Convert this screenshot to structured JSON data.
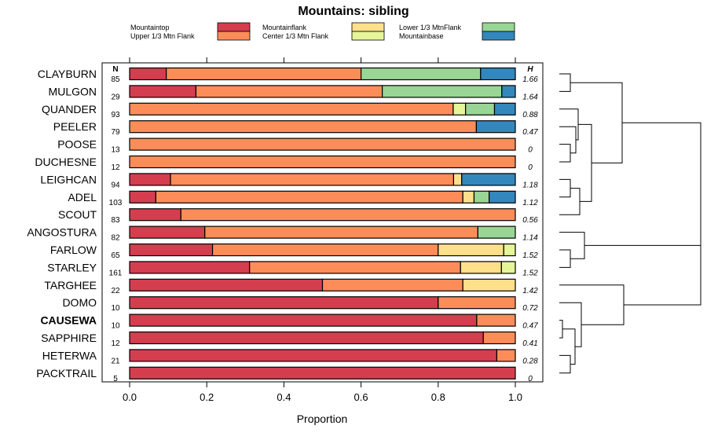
{
  "chart_data": {
    "type": "bar",
    "stacked": true,
    "orientation": "horizontal",
    "title": "Mountains: sibling",
    "xlabel": "Proportion",
    "xlim": [
      0,
      1
    ],
    "xticks": [
      "0.0",
      "0.2",
      "0.4",
      "0.6",
      "0.8",
      "1.0"
    ],
    "n_label": "N",
    "h_label": "H",
    "legend_position": "top",
    "legend": [
      {
        "name": "Mountaintop",
        "color": "#d53e4f"
      },
      {
        "name": "Upper 1/3 Mtn Flank",
        "color": "#fc8d59"
      },
      {
        "name": "Mountainflank",
        "color": "#fee08b"
      },
      {
        "name": "Center 1/3 Mtn Flank",
        "color": "#e6f598"
      },
      {
        "name": "Lower 1/3 MtnFlank",
        "color": "#99d594"
      },
      {
        "name": "Mountainbase",
        "color": "#3288bd"
      }
    ],
    "rows": [
      {
        "label": "CLAYBURN",
        "n": "85",
        "h": "1.66",
        "bold": false,
        "values": [
          0.095,
          0.505,
          0,
          0,
          0.31,
          0.09
        ]
      },
      {
        "label": "MULGON",
        "n": "29",
        "h": "1.64",
        "bold": false,
        "values": [
          0.172,
          0.483,
          0,
          0,
          0.31,
          0.035
        ]
      },
      {
        "label": "QUANDER",
        "n": "93",
        "h": "0.88",
        "bold": false,
        "values": [
          0,
          0.839,
          0,
          0.032,
          0.075,
          0.054
        ]
      },
      {
        "label": "PEELER",
        "n": "79",
        "h": "0.47",
        "bold": false,
        "values": [
          0,
          0.899,
          0,
          0,
          0,
          0.101
        ]
      },
      {
        "label": "POOSE",
        "n": "13",
        "h": "0",
        "bold": false,
        "values": [
          0,
          1,
          0,
          0,
          0,
          0
        ]
      },
      {
        "label": "DUCHESNE",
        "n": "12",
        "h": "0",
        "bold": false,
        "values": [
          0,
          1,
          0,
          0,
          0,
          0
        ]
      },
      {
        "label": "LEIGHCAN",
        "n": "94",
        "h": "1.18",
        "bold": false,
        "values": [
          0.106,
          0.734,
          0.021,
          0,
          0,
          0.139
        ]
      },
      {
        "label": "ADEL",
        "n": "103",
        "h": "1.12",
        "bold": false,
        "values": [
          0.068,
          0.796,
          0.029,
          0,
          0.039,
          0.068
        ]
      },
      {
        "label": "SCOUT",
        "n": "83",
        "h": "0.56",
        "bold": false,
        "values": [
          0.133,
          0.867,
          0,
          0,
          0,
          0
        ]
      },
      {
        "label": "ANGOSTURA",
        "n": "82",
        "h": "1.14",
        "bold": false,
        "values": [
          0.195,
          0.708,
          0,
          0,
          0.097,
          0
        ]
      },
      {
        "label": "FARLOW",
        "n": "65",
        "h": "1.52",
        "bold": false,
        "values": [
          0.215,
          0.585,
          0.17,
          0.03,
          0,
          0
        ]
      },
      {
        "label": "STARLEY",
        "n": "161",
        "h": "1.52",
        "bold": false,
        "values": [
          0.311,
          0.547,
          0.106,
          0.036,
          0,
          0
        ]
      },
      {
        "label": "TARGHEE",
        "n": "22",
        "h": "1.42",
        "bold": false,
        "values": [
          0.5,
          0.364,
          0.136,
          0,
          0,
          0
        ]
      },
      {
        "label": "DOMO",
        "n": "10",
        "h": "0.72",
        "bold": false,
        "values": [
          0.8,
          0.2,
          0,
          0,
          0,
          0
        ]
      },
      {
        "label": "CAUSEWA",
        "n": "10",
        "h": "0.47",
        "bold": true,
        "values": [
          0.9,
          0.1,
          0,
          0,
          0,
          0
        ]
      },
      {
        "label": "SAPPHIRE",
        "n": "12",
        "h": "0.41",
        "bold": false,
        "values": [
          0.917,
          0.083,
          0,
          0,
          0,
          0
        ]
      },
      {
        "label": "HETERWA",
        "n": "21",
        "h": "0.28",
        "bold": false,
        "values": [
          0.952,
          0.048,
          0,
          0,
          0,
          0
        ]
      },
      {
        "label": "PACKTRAIL",
        "n": "5",
        "h": "0",
        "bold": false,
        "values": [
          1,
          0,
          0,
          0,
          0,
          0
        ]
      }
    ]
  }
}
